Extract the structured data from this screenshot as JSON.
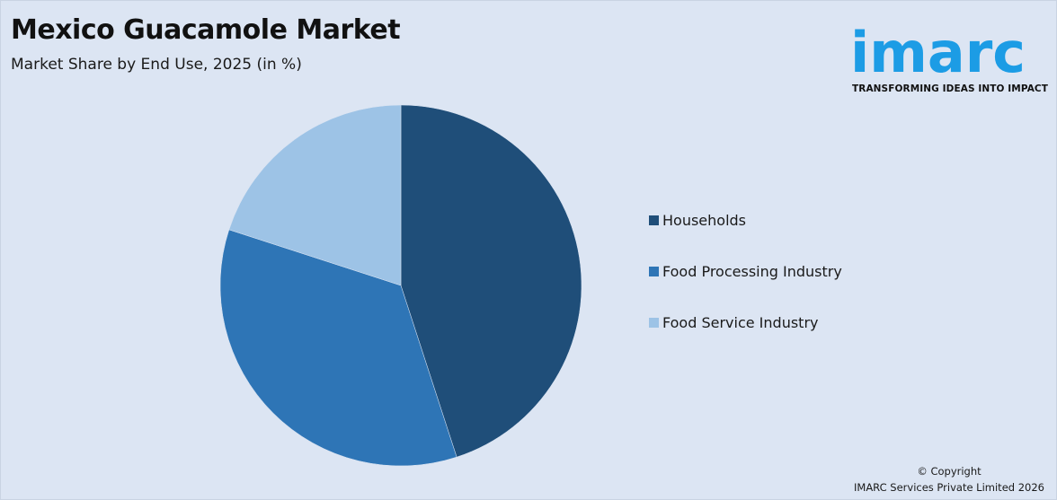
{
  "header": {
    "title": "Mexico Guacamole Market",
    "subtitle": "Market Share by End Use, 2025 (in %)"
  },
  "logo": {
    "word": "imarc",
    "tagline": "TRANSFORMING IDEAS INTO IMPACT",
    "color": "#1c9ce5"
  },
  "chart_data": {
    "type": "pie",
    "title": "Mexico Guacamole Market",
    "subtitle": "Market Share by End Use, 2025 (in %)",
    "categories": [
      "Households",
      "Food Processing Industry",
      "Food Service Industry"
    ],
    "values": [
      45,
      35,
      20
    ],
    "colors": [
      "#1f4e79",
      "#2e75b6",
      "#9dc3e6"
    ],
    "legend_position": "right",
    "start_angle": "top, clockwise"
  },
  "footer": {
    "copyright_line1": "© Copyright",
    "copyright_line2": "IMARC Services Private Limited 2026"
  }
}
